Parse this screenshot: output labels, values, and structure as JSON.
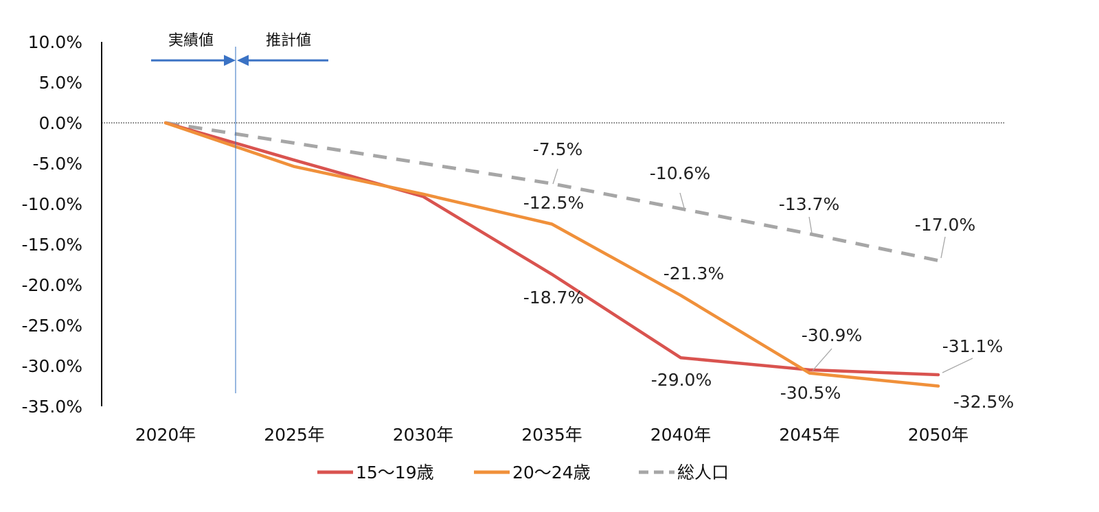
{
  "chart_data": {
    "type": "line",
    "categories": [
      "2020年",
      "2025年",
      "2030年",
      "2035年",
      "2040年",
      "2045年",
      "2050年"
    ],
    "series": [
      {
        "name": "15〜19歳",
        "color": "#d9534f",
        "dash": false,
        "values": [
          0.0,
          -4.6,
          -9.1,
          -18.7,
          -29.0,
          -30.5,
          -31.1
        ],
        "labels": [
          null,
          null,
          null,
          "-18.7%",
          "-29.0%",
          "-30.5%",
          "-31.1%"
        ]
      },
      {
        "name": "20〜24歳",
        "color": "#f0903a",
        "dash": false,
        "values": [
          0.0,
          -5.4,
          -8.8,
          -12.5,
          -21.3,
          -30.9,
          -32.5
        ],
        "labels": [
          null,
          null,
          null,
          "-12.5%",
          "-21.3%",
          "-30.9%",
          "-32.5%"
        ]
      },
      {
        "name": "総人口",
        "color": "#a6a6a6",
        "dash": true,
        "values": [
          0.0,
          null,
          null,
          -7.5,
          -10.6,
          -13.7,
          -17.0
        ],
        "labels": [
          null,
          null,
          null,
          "-7.5%",
          "-10.6%",
          "-13.7%",
          "-17.0%"
        ]
      }
    ],
    "yticks": [
      "10.0%",
      "5.0%",
      "0.0%",
      "-5.0%",
      "-10.0%",
      "-15.0%",
      "-20.0%",
      "-25.0%",
      "-30.0%",
      "-35.0%"
    ],
    "ylim": [
      -35,
      10
    ],
    "annotations": {
      "actual": "実績値",
      "projected": "推計値"
    },
    "legend_position": "bottom"
  }
}
